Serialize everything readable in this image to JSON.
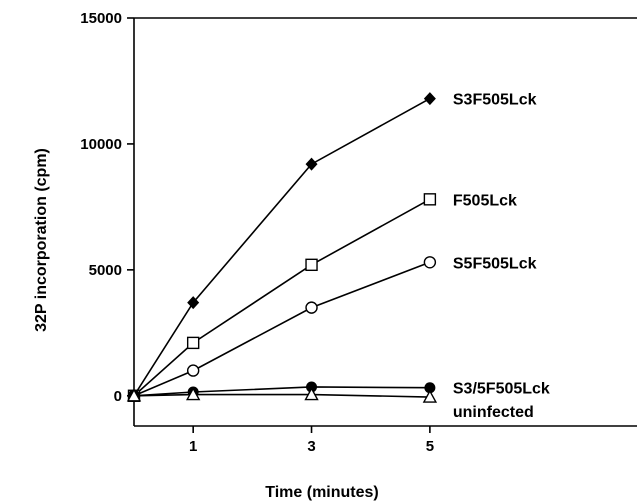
{
  "chart_data": {
    "type": "line",
    "title": "",
    "xlabel": "Time (minutes)",
    "ylabel": "32P incorporation (cpm)",
    "x": [
      0,
      1,
      3,
      5
    ],
    "xticks": [
      1,
      3,
      5
    ],
    "xlim": [
      0,
      8.5
    ],
    "ylim": [
      -1200,
      15000
    ],
    "yticks": [
      0,
      5000,
      10000,
      15000
    ],
    "grid": false,
    "legend": "labels at line ends",
    "series": [
      {
        "name": "S3F505Lck",
        "marker": "filled-diamond",
        "values": [
          0,
          3700,
          9200,
          11800
        ]
      },
      {
        "name": "F505Lck",
        "marker": "open-square",
        "values": [
          0,
          2100,
          5200,
          7800
        ]
      },
      {
        "name": "S5F505Lck",
        "marker": "open-circle",
        "values": [
          0,
          1000,
          3500,
          5300
        ]
      },
      {
        "name": "S3/5F505Lck",
        "marker": "filled-circle",
        "values": [
          0,
          150,
          350,
          320
        ]
      },
      {
        "name": "uninfected",
        "marker": "open-triangle",
        "values": [
          0,
          50,
          50,
          -50
        ]
      }
    ]
  }
}
